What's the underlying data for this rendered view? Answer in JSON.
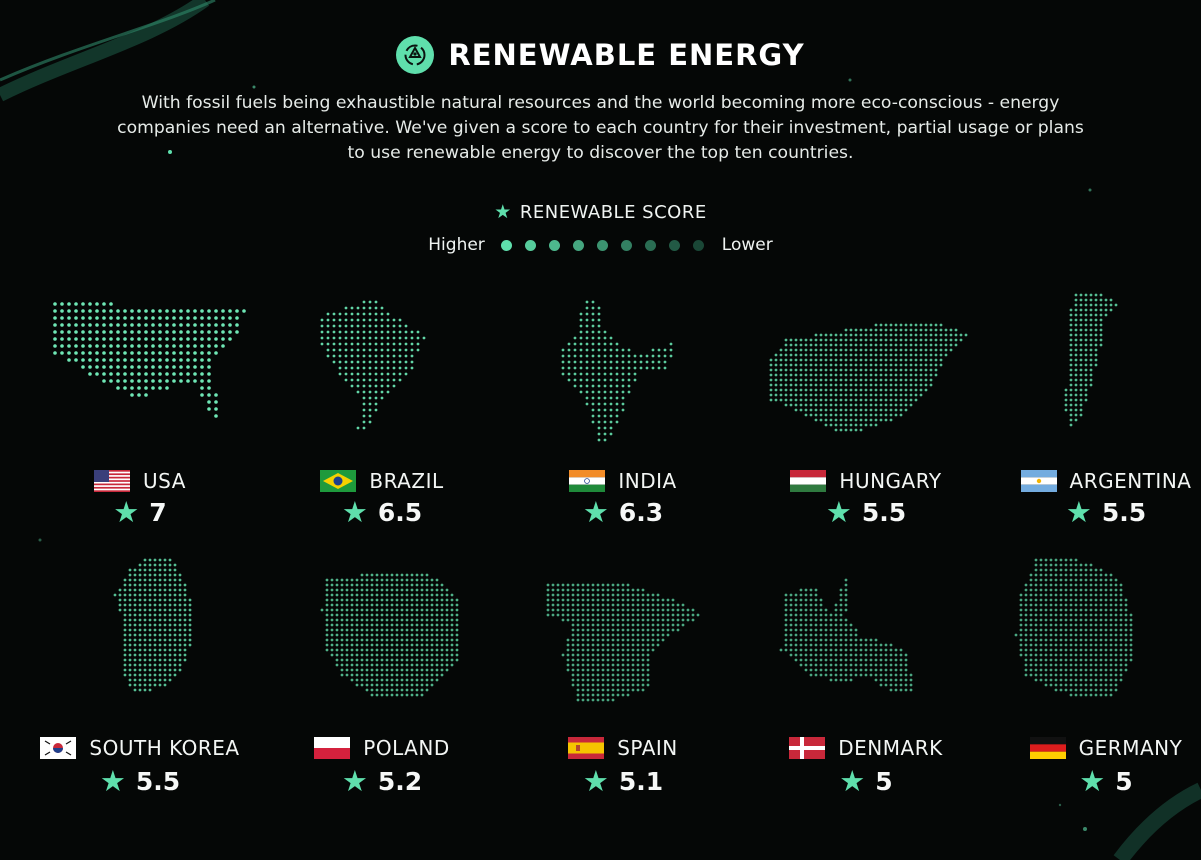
{
  "title": "RENEWABLE ENERGY",
  "logo_icon": "recycle-energy-icon",
  "description": "With fossil fuels being exhaustible natural resources and the world becoming more eco-conscious - energy companies need an alternative. We've given a score to each country for their investment, partial usage or plans to use renewable energy to discover the top ten countries.",
  "legend": {
    "title": "RENEWABLE SCORE",
    "higher": "Higher",
    "lower": "Lower",
    "dot_colors": [
      "#5fdfac",
      "#56cc9c",
      "#4db98d",
      "#45a67f",
      "#3c9370",
      "#338062",
      "#2a6d53",
      "#225a45",
      "#1a4736"
    ]
  },
  "colors": {
    "accent": "#5fdfac",
    "background": "#050706"
  },
  "countries": [
    {
      "name": "USA",
      "score": "7",
      "flag": "usa-flag"
    },
    {
      "name": "BRAZIL",
      "score": "6.5",
      "flag": "brazil-flag"
    },
    {
      "name": "INDIA",
      "score": "6.3",
      "flag": "india-flag"
    },
    {
      "name": "HUNGARY",
      "score": "5.5",
      "flag": "hungary-flag"
    },
    {
      "name": "ARGENTINA",
      "score": "5.5",
      "flag": "argentina-flag"
    },
    {
      "name": "SOUTH KOREA",
      "score": "5.5",
      "flag": "south-korea-flag"
    },
    {
      "name": "POLAND",
      "score": "5.2",
      "flag": "poland-flag"
    },
    {
      "name": "SPAIN",
      "score": "5.1",
      "flag": "spain-flag"
    },
    {
      "name": "DENMARK",
      "score": "5",
      "flag": "denmark-flag"
    },
    {
      "name": "GERMANY",
      "score": "5",
      "flag": "germany-flag"
    }
  ]
}
